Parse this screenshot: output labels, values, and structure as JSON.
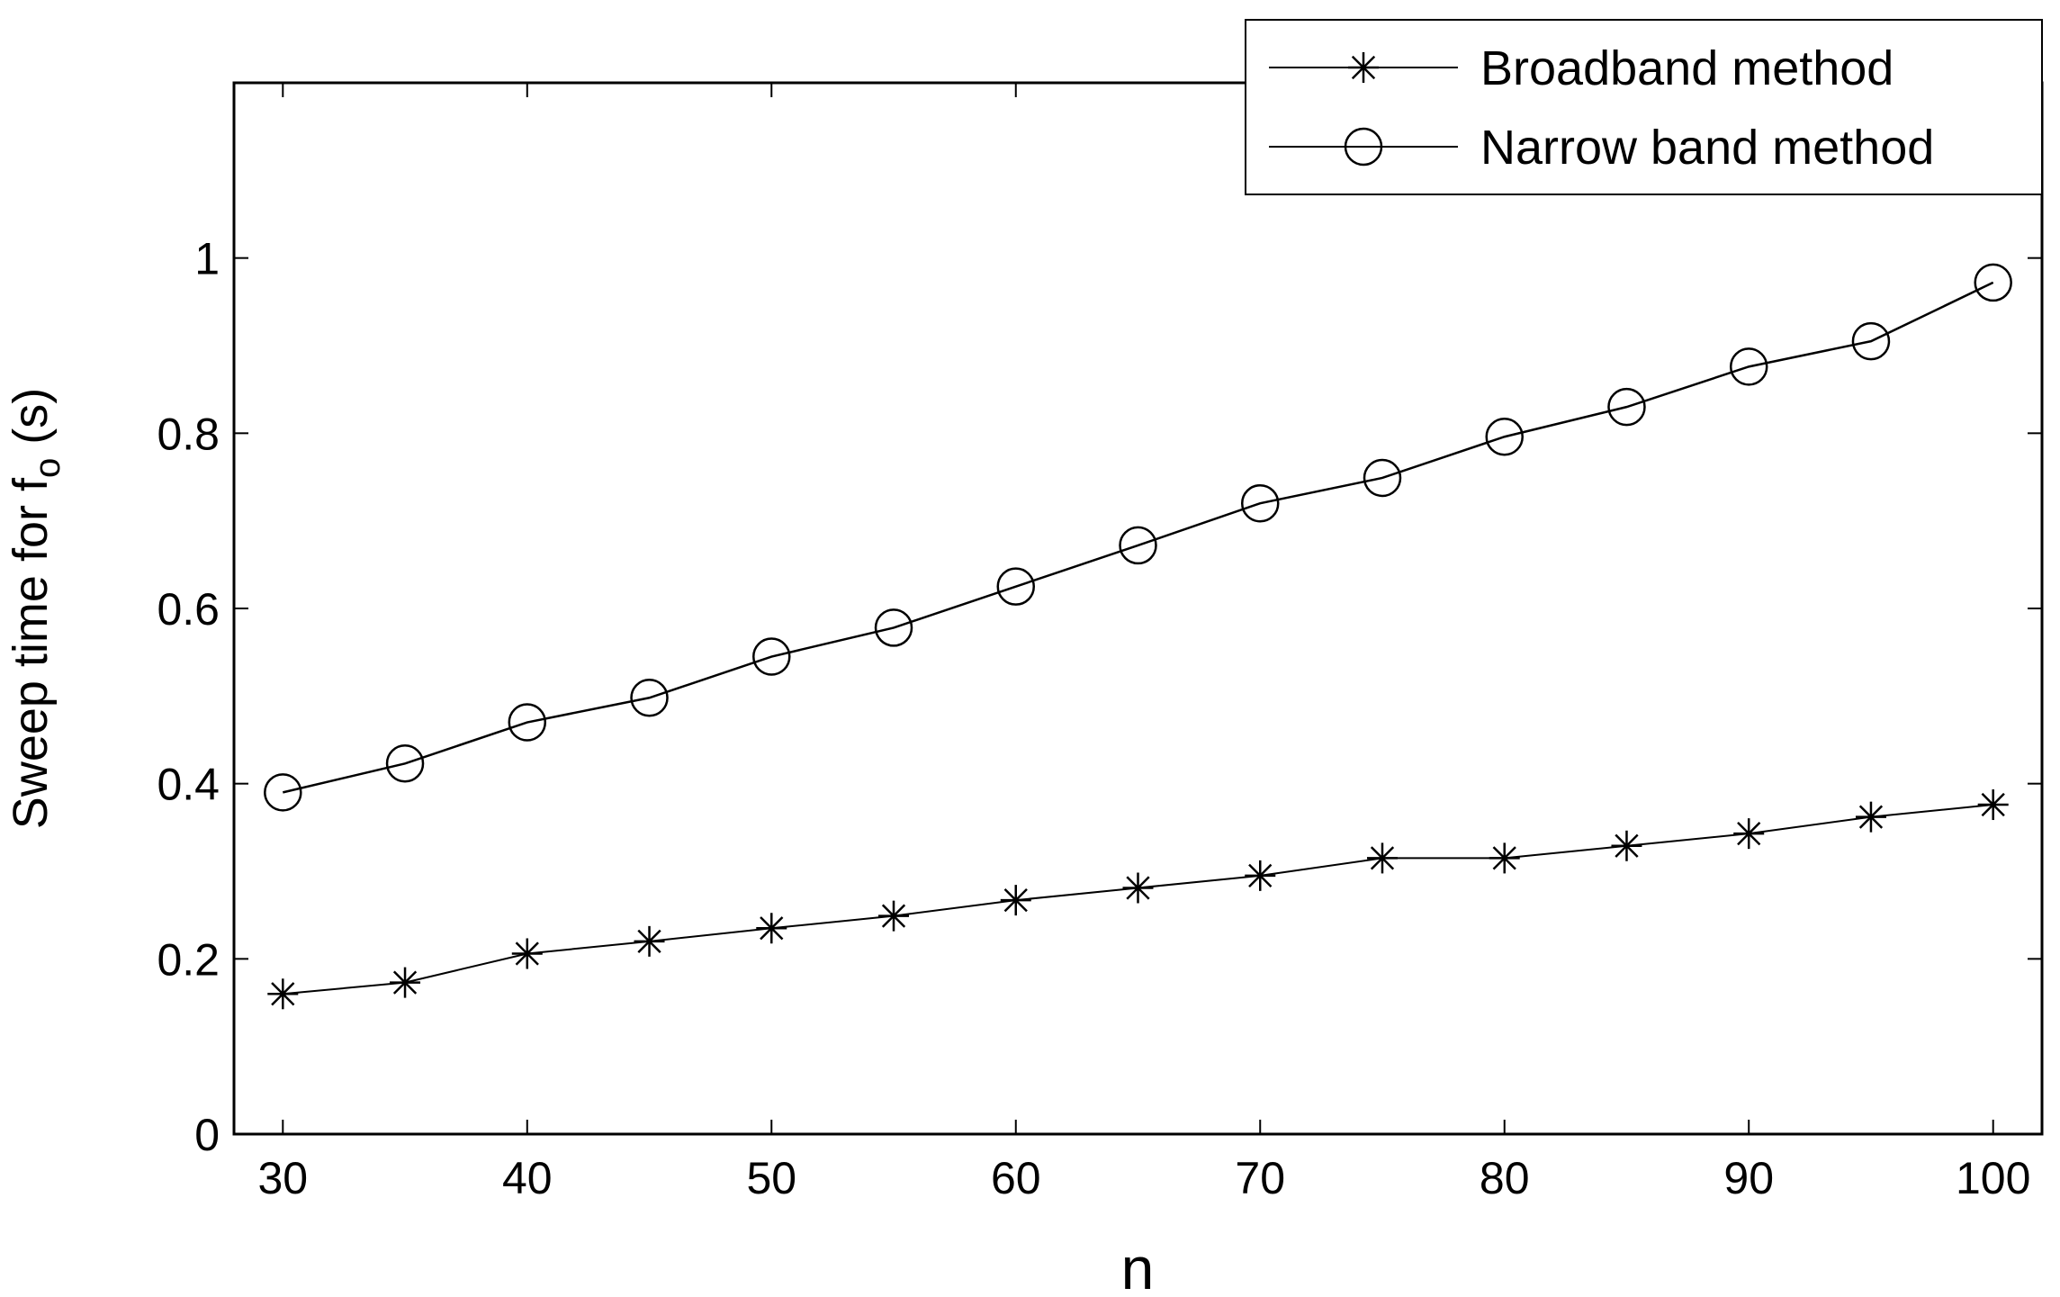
{
  "chart_data": {
    "type": "line",
    "xlabel": "n",
    "ylabel": {
      "main": "Sweep time for f",
      "subscript": "o",
      "suffix": " (s)"
    },
    "xlim": [
      28,
      102
    ],
    "ylim": [
      0,
      1.2
    ],
    "xticks": [
      30,
      40,
      50,
      60,
      70,
      80,
      90,
      100
    ],
    "yticks": [
      0,
      0.2,
      0.4,
      0.6,
      0.8,
      1
    ],
    "ytick_labels": [
      "0",
      "0.2",
      "0.4",
      "0.6",
      "0.8",
      "1"
    ],
    "grid": false,
    "legend_position": "top-right",
    "x": [
      30,
      35,
      40,
      45,
      50,
      55,
      60,
      65,
      70,
      75,
      80,
      85,
      90,
      95,
      100
    ],
    "series": [
      {
        "name": "Broadband method",
        "marker": "asterisk",
        "values": [
          0.16,
          0.173,
          0.206,
          0.22,
          0.235,
          0.249,
          0.267,
          0.281,
          0.295,
          0.315,
          0.315,
          0.329,
          0.343,
          0.362,
          0.376
        ]
      },
      {
        "name": "Narrow band method",
        "marker": "circle",
        "values": [
          0.39,
          0.423,
          0.47,
          0.498,
          0.545,
          0.578,
          0.625,
          0.672,
          0.72,
          0.749,
          0.796,
          0.83,
          0.876,
          0.905,
          0.972
        ]
      }
    ],
    "colors": {
      "line": "#000000",
      "background": "#ffffff"
    }
  }
}
